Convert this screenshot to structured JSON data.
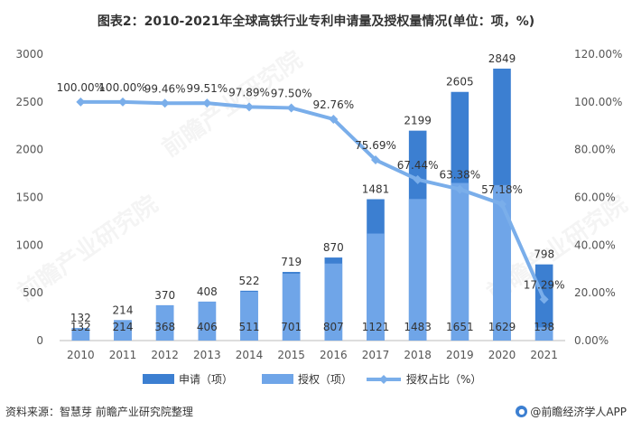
{
  "title": "图表2：2010-2021年全球高铁行业专利申请量及授权量情况(单位：项，%)",
  "footer": {
    "source": "资料来源：智慧芽 前瞻产业研究院整理",
    "brand": "@前瞻经济学人APP",
    "brand_icon": "qianzhan-logo-icon"
  },
  "watermark_text": "前瞻产业研究院",
  "colors": {
    "application": "#3c7fd1",
    "grant": "#6fa5e8",
    "ratio": "#7aaeea"
  },
  "chart_data": {
    "type": "bar",
    "categories": [
      "2010",
      "2011",
      "2012",
      "2013",
      "2014",
      "2015",
      "2016",
      "2017",
      "2018",
      "2019",
      "2020",
      "2021"
    ],
    "series": [
      {
        "name": "申请（项）",
        "type": "bar",
        "axis": "left",
        "values": [
          132,
          214,
          370,
          408,
          522,
          719,
          870,
          1481,
          2199,
          2605,
          2849,
          798
        ],
        "labels": [
          "132",
          "214",
          "370",
          "408",
          "522",
          "719",
          "870",
          "1481",
          "2199",
          "2605",
          "2849",
          "798"
        ]
      },
      {
        "name": "授权（项）",
        "type": "bar",
        "axis": "left",
        "values": [
          132,
          214,
          368,
          406,
          511,
          701,
          807,
          1121,
          1483,
          1651,
          1629,
          138
        ],
        "labels": [
          "132",
          "214",
          "368",
          "406",
          "511",
          "701",
          "807",
          "1121",
          "1483",
          "1651",
          "1629",
          "138"
        ]
      },
      {
        "name": "授权占比（%）",
        "type": "line",
        "axis": "right",
        "values": [
          100.0,
          100.0,
          99.46,
          99.51,
          97.89,
          97.5,
          92.76,
          75.69,
          67.44,
          63.38,
          57.18,
          17.29
        ],
        "labels": [
          "100.00%",
          "100.00%",
          "99.46%",
          "99.51%",
          "97.89%",
          "97.50%",
          "92.76%",
          "75.69%",
          "67.44%",
          "63.38%",
          "57.18%",
          "17.29%"
        ]
      }
    ],
    "y_left": {
      "min": 0,
      "max": 3000,
      "ticks": [
        "0",
        "500",
        "1000",
        "1500",
        "2000",
        "2500",
        "3000"
      ]
    },
    "y_right": {
      "min": 0,
      "max": 120,
      "ticks": [
        "0.00%",
        "20.00%",
        "40.00%",
        "60.00%",
        "80.00%",
        "100.00%",
        "120.00%"
      ]
    },
    "grid": false,
    "legend": "bottom"
  }
}
